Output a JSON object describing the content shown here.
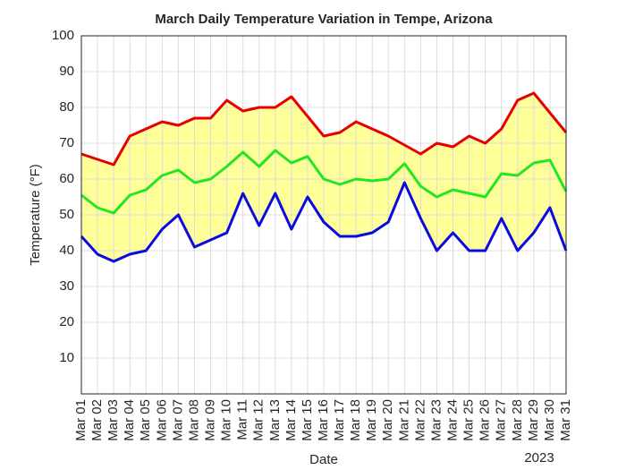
{
  "chart_data": {
    "type": "line",
    "title": "March Daily Temperature Variation in Tempe, Arizona",
    "x_label": "Date",
    "x_secondary_label": "2023",
    "y_label": "Temperature (°F)",
    "categories": [
      "Mar 01",
      "Mar 02",
      "Mar 03",
      "Mar 04",
      "Mar 05",
      "Mar 06",
      "Mar 07",
      "Mar 08",
      "Mar 09",
      "Mar 10",
      "Mar 11",
      "Mar 12",
      "Mar 13",
      "Mar 14",
      "Mar 15",
      "Mar 16",
      "Mar 17",
      "Mar 18",
      "Mar 19",
      "Mar 20",
      "Mar 21",
      "Mar 22",
      "Mar 23",
      "Mar 24",
      "Mar 25",
      "Mar 26",
      "Mar 27",
      "Mar 28",
      "Mar 29",
      "Mar 30",
      "Mar 31"
    ],
    "series": [
      {
        "color": "#e60000",
        "values": [
          67,
          65.5,
          64,
          72,
          74,
          76,
          75,
          77,
          77,
          82,
          79,
          80,
          80,
          83,
          77.5,
          72,
          73,
          76,
          74,
          72,
          69.5,
          67,
          70,
          69,
          72,
          70,
          74,
          82,
          84,
          78.5,
          73
        ]
      },
      {
        "color": "#22e622",
        "values": [
          55.5,
          52,
          50.5,
          55.5,
          57,
          61,
          62.5,
          59,
          60,
          63.5,
          67.5,
          63.5,
          68,
          64.5,
          66.3,
          60,
          58.5,
          60,
          59.5,
          60,
          64.3,
          58,
          55,
          57,
          56,
          55,
          61.5,
          61,
          64.5,
          65.3,
          56.5
        ]
      },
      {
        "color": "#0a0ae0",
        "values": [
          44,
          39,
          37,
          39,
          40,
          46,
          50,
          41,
          43,
          45,
          56,
          47,
          56,
          46,
          55,
          48,
          44,
          44,
          45,
          48,
          59,
          49,
          40,
          45,
          40,
          40,
          49,
          40,
          45,
          52,
          40
        ]
      }
    ],
    "band_color": "#ffff99",
    "ylim": [
      0,
      100
    ],
    "yticks": [
      10,
      20,
      30,
      40,
      50,
      60,
      70,
      80,
      90,
      100
    ],
    "grid": true
  }
}
